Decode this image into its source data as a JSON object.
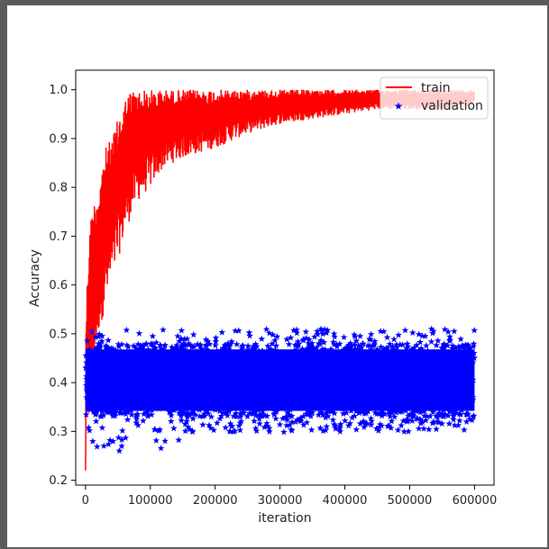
{
  "chart_data": {
    "type": "line",
    "title": "",
    "xlabel": "iteration",
    "ylabel": "Accuracy",
    "xlim": [
      -15000,
      630000
    ],
    "ylim": [
      0.19,
      1.04
    ],
    "xticks": [
      0,
      100000,
      200000,
      300000,
      400000,
      500000,
      600000
    ],
    "xtick_labels": [
      "0",
      "100000",
      "200000",
      "300000",
      "400000",
      "500000",
      "600000"
    ],
    "yticks": [
      0.2,
      0.3,
      0.4,
      0.5,
      0.6,
      0.7,
      0.8,
      0.9,
      1.0
    ],
    "ytick_labels": [
      "0.2",
      "0.3",
      "0.4",
      "0.5",
      "0.6",
      "0.7",
      "0.8",
      "0.9",
      "1.0"
    ],
    "grid": false,
    "legend_position": "top-right",
    "series": [
      {
        "name": "train",
        "style": "line",
        "color": "#ff0000",
        "x": [
          0,
          5000,
          10000,
          20000,
          30000,
          40000,
          50000,
          60000,
          70000,
          80000,
          100000,
          120000,
          150000,
          200000,
          250000,
          300000,
          350000,
          400000,
          450000,
          500000,
          550000,
          600000
        ],
        "upper": [
          0.52,
          0.7,
          0.76,
          0.8,
          0.88,
          0.9,
          0.94,
          0.98,
          1.0,
          1.0,
          1.0,
          1.0,
          1.0,
          1.0,
          1.0,
          1.0,
          1.0,
          1.0,
          1.0,
          1.0,
          1.0,
          1.0
        ],
        "lower": [
          0.22,
          0.3,
          0.4,
          0.5,
          0.55,
          0.6,
          0.65,
          0.7,
          0.74,
          0.77,
          0.8,
          0.84,
          0.86,
          0.88,
          0.91,
          0.93,
          0.94,
          0.95,
          0.96,
          0.96,
          0.96,
          0.97
        ]
      },
      {
        "name": "validation",
        "style": "scatter",
        "marker": "star",
        "color": "#0000ff",
        "x": [
          0,
          600000
        ],
        "band_upper": 0.48,
        "band_lower": 0.33,
        "outlier_max": 0.51,
        "outlier_min": 0.26
      }
    ]
  }
}
